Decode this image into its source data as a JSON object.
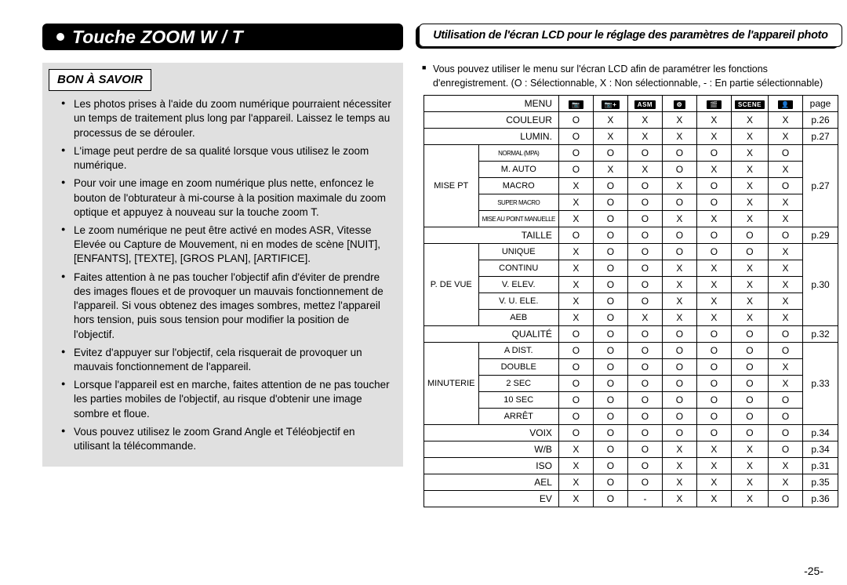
{
  "header": {
    "left_title": "Touche ZOOM W / T",
    "right_title": "Utilisation de l'écran LCD pour le réglage des paramètres de l'appareil photo"
  },
  "info": {
    "heading": "BON À SAVOIR",
    "items": [
      "Les photos prises à l'aide du zoom numérique pourraient nécessiter un temps de traitement plus long par l'appareil. Laissez le temps au processus de se dérouler.",
      "L'image peut perdre de sa qualité lorsque vous utilisez le zoom numérique.",
      "Pour voir une image en zoom numérique plus nette, enfoncez le bouton de l'obturateur à mi-course à la position maximale du zoom optique et appuyez à nouveau sur la touche zoom T.",
      "Le zoom numérique ne peut être activé en modes ASR, Vitesse Elevée ou Capture de Mouvement, ni en modes de scène [NUIT], [ENFANTS], [TEXTE], [GROS PLAN], [ARTIFICE].",
      "Faites attention à ne pas toucher l'objectif afin d'éviter de prendre des images floues et de provoquer un mauvais fonctionnement de l'appareil. Si vous obtenez des images sombres, mettez l'appareil hors tension, puis sous tension pour modifier la position de l'objectif.",
      "Evitez d'appuyer sur l'objectif, cela risquerait de provoquer un mauvais fonctionnement de l'appareil.",
      "Lorsque l'appareil est en marche, faites attention de ne pas toucher les parties mobiles de l'objectif, au risque d'obtenir une image sombre et floue.",
      "Vous pouvez utilisez le zoom Grand Angle et Téléobjectif en utilisant la télécommande."
    ]
  },
  "right_intro": "Vous pouvez utiliser le menu sur l'écran LCD afin de paramétrer les fonctions d'enregistrement. (O : Sélectionnable, X : Non sélectionnable, - : En partie sélectionnable)",
  "table": {
    "header": {
      "menu": "MENU",
      "icons": [
        "📷",
        "📷+",
        "ASM",
        "⚙",
        "🎬",
        "SCENE",
        "👤"
      ],
      "page": "page"
    },
    "groups": [
      {
        "label": "COULEUR",
        "rows": [
          [
            "O",
            "X",
            "X",
            "X",
            "X",
            "X",
            "X"
          ]
        ],
        "page": "p.26"
      },
      {
        "label": "LUMIN.",
        "rows": [
          [
            "O",
            "X",
            "X",
            "X",
            "X",
            "X",
            "X"
          ]
        ],
        "page": "p.27"
      },
      {
        "label": "MISE PT",
        "sub": [
          {
            "name": "NORMAL (MPA)",
            "class": "tiny",
            "vals": [
              "O",
              "O",
              "O",
              "O",
              "O",
              "X",
              "O"
            ]
          },
          {
            "name": "M. AUTO",
            "vals": [
              "O",
              "X",
              "X",
              "O",
              "X",
              "X",
              "X"
            ]
          },
          {
            "name": "MACRO",
            "vals": [
              "X",
              "O",
              "O",
              "X",
              "O",
              "X",
              "O"
            ]
          },
          {
            "name": "SUPER MACRO",
            "class": "tiny",
            "vals": [
              "X",
              "O",
              "O",
              "O",
              "O",
              "X",
              "X"
            ]
          },
          {
            "name": "MISE AU POINT MANUELLE",
            "class": "tiny",
            "vals": [
              "X",
              "O",
              "O",
              "X",
              "X",
              "X",
              "X"
            ]
          }
        ],
        "page": "p.27"
      },
      {
        "label": "TAILLE",
        "rows": [
          [
            "O",
            "O",
            "O",
            "O",
            "O",
            "O",
            "O"
          ]
        ],
        "page": "p.29"
      },
      {
        "label": "P. DE VUE",
        "sub": [
          {
            "name": "UNIQUE",
            "vals": [
              "X",
              "O",
              "O",
              "O",
              "O",
              "O",
              "X"
            ]
          },
          {
            "name": "CONTINU",
            "vals": [
              "X",
              "O",
              "O",
              "X",
              "X",
              "X",
              "X"
            ]
          },
          {
            "name": "V. ELEV.",
            "vals": [
              "X",
              "O",
              "O",
              "X",
              "X",
              "X",
              "X"
            ]
          },
          {
            "name": "V. U. ELE.",
            "vals": [
              "X",
              "O",
              "O",
              "X",
              "X",
              "X",
              "X"
            ]
          },
          {
            "name": "AEB",
            "vals": [
              "X",
              "O",
              "X",
              "X",
              "X",
              "X",
              "X"
            ]
          }
        ],
        "page": "p.30"
      },
      {
        "label": "QUALITÉ",
        "rows": [
          [
            "O",
            "O",
            "O",
            "O",
            "O",
            "O",
            "O"
          ]
        ],
        "page": "p.32"
      },
      {
        "label": "MINUTERIE",
        "sub": [
          {
            "name": "A DIST.",
            "vals": [
              "O",
              "O",
              "O",
              "O",
              "O",
              "O",
              "O"
            ]
          },
          {
            "name": "DOUBLE",
            "vals": [
              "O",
              "O",
              "O",
              "O",
              "O",
              "O",
              "X"
            ]
          },
          {
            "name": "2 SEC",
            "vals": [
              "O",
              "O",
              "O",
              "O",
              "O",
              "O",
              "X"
            ]
          },
          {
            "name": "10 SEC",
            "vals": [
              "O",
              "O",
              "O",
              "O",
              "O",
              "O",
              "O"
            ]
          },
          {
            "name": "ARRÊT",
            "vals": [
              "O",
              "O",
              "O",
              "O",
              "O",
              "O",
              "O"
            ]
          }
        ],
        "page": "p.33"
      },
      {
        "label": "VOIX",
        "rows": [
          [
            "O",
            "O",
            "O",
            "O",
            "O",
            "O",
            "O"
          ]
        ],
        "page": "p.34"
      },
      {
        "label": "W/B",
        "rows": [
          [
            "X",
            "O",
            "O",
            "X",
            "X",
            "X",
            "O"
          ]
        ],
        "page": "p.34"
      },
      {
        "label": "ISO",
        "rows": [
          [
            "X",
            "O",
            "O",
            "X",
            "X",
            "X",
            "X"
          ]
        ],
        "page": "p.31"
      },
      {
        "label": "AEL",
        "rows": [
          [
            "X",
            "O",
            "O",
            "X",
            "X",
            "X",
            "X"
          ]
        ],
        "page": "p.35"
      },
      {
        "label": "EV",
        "rows": [
          [
            "X",
            "O",
            "-",
            "X",
            "X",
            "X",
            "O"
          ]
        ],
        "page": "p.36"
      }
    ]
  },
  "page_number": "-25-"
}
